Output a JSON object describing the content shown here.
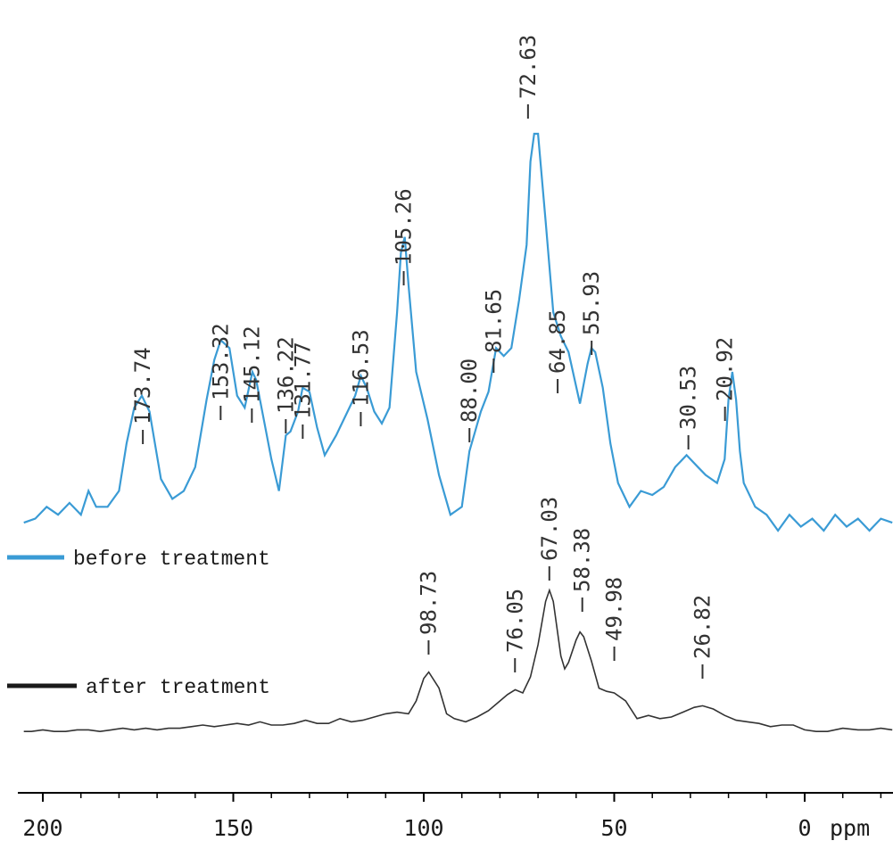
{
  "chart_data": {
    "type": "line",
    "title": "",
    "xlabel": "ppm",
    "ylabel": "",
    "xlim": [
      205,
      -23
    ],
    "x_reversed": true,
    "xticks": [
      200,
      150,
      100,
      50,
      0
    ],
    "xtick_labels": [
      "200",
      "150",
      "100",
      "50",
      "0"
    ],
    "x_unit_label": "ppm",
    "grid": false,
    "legend": "left",
    "series": [
      {
        "name": "before treatment",
        "color": "#3a9bd5",
        "peak_labels": [
          "173.74",
          "153.32",
          "145.12",
          "136.22",
          "131.77",
          "116.53",
          "105.26",
          "88.00",
          "81.65",
          "72.63",
          "64.85",
          "55.93",
          "30.53",
          "20.92"
        ],
        "peaks_ppm": [
          173.74,
          153.32,
          145.12,
          136.22,
          131.77,
          116.53,
          105.26,
          88.0,
          81.65,
          72.63,
          64.85,
          55.93,
          30.53,
          20.92
        ],
        "points": [
          [
            -23,
            0.02
          ],
          [
            -20,
            0.03
          ],
          [
            -17,
            0.0
          ],
          [
            -14,
            0.03
          ],
          [
            -11,
            0.01
          ],
          [
            -8,
            0.04
          ],
          [
            -5,
            0.0
          ],
          [
            -2,
            0.03
          ],
          [
            1,
            0.01
          ],
          [
            4,
            0.04
          ],
          [
            7,
            0.0
          ],
          [
            10,
            0.04
          ],
          [
            13,
            0.06
          ],
          [
            16,
            0.12
          ],
          [
            17,
            0.2
          ],
          [
            18,
            0.33
          ],
          [
            19,
            0.4
          ],
          [
            20,
            0.33
          ],
          [
            21,
            0.18
          ],
          [
            23,
            0.12
          ],
          [
            26,
            0.14
          ],
          [
            28,
            0.16
          ],
          [
            31,
            0.19
          ],
          [
            34,
            0.16
          ],
          [
            37,
            0.11
          ],
          [
            40,
            0.09
          ],
          [
            43,
            0.1
          ],
          [
            46,
            0.06
          ],
          [
            49,
            0.12
          ],
          [
            51,
            0.22
          ],
          [
            53,
            0.36
          ],
          [
            55,
            0.45
          ],
          [
            56,
            0.46
          ],
          [
            57,
            0.42
          ],
          [
            59,
            0.32
          ],
          [
            62,
            0.45
          ],
          [
            64,
            0.49
          ],
          [
            66,
            0.55
          ],
          [
            68,
            0.78
          ],
          [
            70,
            1.0
          ],
          [
            71,
            1.0
          ],
          [
            72,
            0.93
          ],
          [
            73,
            0.72
          ],
          [
            75,
            0.58
          ],
          [
            77,
            0.46
          ],
          [
            79,
            0.44
          ],
          [
            81,
            0.46
          ],
          [
            83,
            0.35
          ],
          [
            85,
            0.3
          ],
          [
            88,
            0.2
          ],
          [
            90,
            0.06
          ],
          [
            93,
            0.04
          ],
          [
            96,
            0.14
          ],
          [
            99,
            0.28
          ],
          [
            102,
            0.4
          ],
          [
            104,
            0.62
          ],
          [
            105,
            0.74
          ],
          [
            106,
            0.7
          ],
          [
            107,
            0.55
          ],
          [
            109,
            0.31
          ],
          [
            111,
            0.27
          ],
          [
            113,
            0.3
          ],
          [
            115,
            0.36
          ],
          [
            116.5,
            0.39
          ],
          [
            118,
            0.34
          ],
          [
            120,
            0.3
          ],
          [
            123,
            0.24
          ],
          [
            126,
            0.19
          ],
          [
            128,
            0.26
          ],
          [
            130,
            0.35
          ],
          [
            131.8,
            0.36
          ],
          [
            133,
            0.3
          ],
          [
            135,
            0.25
          ],
          [
            136.2,
            0.24
          ],
          [
            138,
            0.1
          ],
          [
            140,
            0.18
          ],
          [
            142,
            0.28
          ],
          [
            144,
            0.38
          ],
          [
            145,
            0.4
          ],
          [
            147,
            0.31
          ],
          [
            149,
            0.34
          ],
          [
            151,
            0.46
          ],
          [
            153.3,
            0.48
          ],
          [
            155,
            0.43
          ],
          [
            157,
            0.33
          ],
          [
            160,
            0.16
          ],
          [
            163,
            0.1
          ],
          [
            166,
            0.08
          ],
          [
            169,
            0.13
          ],
          [
            172,
            0.3
          ],
          [
            174,
            0.34
          ],
          [
            176,
            0.31
          ],
          [
            178,
            0.22
          ],
          [
            180,
            0.1
          ],
          [
            183,
            0.06
          ],
          [
            186,
            0.06
          ],
          [
            188,
            0.1
          ],
          [
            190,
            0.04
          ],
          [
            193,
            0.07
          ],
          [
            196,
            0.04
          ],
          [
            199,
            0.06
          ],
          [
            202,
            0.03
          ],
          [
            205,
            0.02
          ]
        ]
      },
      {
        "name": "after treatment",
        "color": "#333333",
        "peak_labels": [
          "98.73",
          "76.05",
          "67.03",
          "58.38",
          "49.98",
          "26.82"
        ],
        "peaks_ppm": [
          98.73,
          76.05,
          67.03,
          58.38,
          49.98,
          26.82
        ],
        "points": [
          [
            -23,
            0.02
          ],
          [
            -20,
            0.03
          ],
          [
            -17,
            0.02
          ],
          [
            -14,
            0.02
          ],
          [
            -10,
            0.03
          ],
          [
            -6,
            0.01
          ],
          [
            -3,
            0.01
          ],
          [
            0,
            0.02
          ],
          [
            3,
            0.05
          ],
          [
            6,
            0.05
          ],
          [
            9,
            0.04
          ],
          [
            12,
            0.06
          ],
          [
            15,
            0.07
          ],
          [
            18,
            0.08
          ],
          [
            21,
            0.11
          ],
          [
            24,
            0.15
          ],
          [
            26.8,
            0.17
          ],
          [
            29,
            0.16
          ],
          [
            32,
            0.13
          ],
          [
            35,
            0.1
          ],
          [
            38,
            0.09
          ],
          [
            41,
            0.11
          ],
          [
            44,
            0.09
          ],
          [
            47,
            0.2
          ],
          [
            50,
            0.25
          ],
          [
            52,
            0.26
          ],
          [
            54,
            0.28
          ],
          [
            56,
            0.45
          ],
          [
            58,
            0.6
          ],
          [
            59,
            0.63
          ],
          [
            60,
            0.58
          ],
          [
            62,
            0.44
          ],
          [
            63,
            0.4
          ],
          [
            64,
            0.48
          ],
          [
            66,
            0.82
          ],
          [
            67,
            0.89
          ],
          [
            68,
            0.82
          ],
          [
            70,
            0.55
          ],
          [
            72,
            0.35
          ],
          [
            74,
            0.25
          ],
          [
            76,
            0.27
          ],
          [
            78,
            0.24
          ],
          [
            80,
            0.2
          ],
          [
            83,
            0.14
          ],
          [
            86,
            0.1
          ],
          [
            89,
            0.07
          ],
          [
            92,
            0.09
          ],
          [
            94,
            0.12
          ],
          [
            96,
            0.28
          ],
          [
            98.7,
            0.38
          ],
          [
            100,
            0.34
          ],
          [
            102,
            0.2
          ],
          [
            104,
            0.12
          ],
          [
            107,
            0.13
          ],
          [
            110,
            0.12
          ],
          [
            113,
            0.1
          ],
          [
            116,
            0.08
          ],
          [
            119,
            0.07
          ],
          [
            122,
            0.09
          ],
          [
            125,
            0.06
          ],
          [
            128,
            0.06
          ],
          [
            131,
            0.08
          ],
          [
            134,
            0.06
          ],
          [
            137,
            0.05
          ],
          [
            140,
            0.05
          ],
          [
            143,
            0.07
          ],
          [
            146,
            0.05
          ],
          [
            149,
            0.06
          ],
          [
            152,
            0.05
          ],
          [
            155,
            0.04
          ],
          [
            158,
            0.05
          ],
          [
            161,
            0.04
          ],
          [
            164,
            0.03
          ],
          [
            167,
            0.03
          ],
          [
            170,
            0.02
          ],
          [
            173,
            0.03
          ],
          [
            176,
            0.02
          ],
          [
            179,
            0.03
          ],
          [
            182,
            0.02
          ],
          [
            185,
            0.01
          ],
          [
            188,
            0.02
          ],
          [
            191,
            0.02
          ],
          [
            194,
            0.01
          ],
          [
            197,
            0.01
          ],
          [
            200,
            0.02
          ],
          [
            203,
            0.01
          ],
          [
            205,
            0.01
          ]
        ]
      }
    ]
  }
}
